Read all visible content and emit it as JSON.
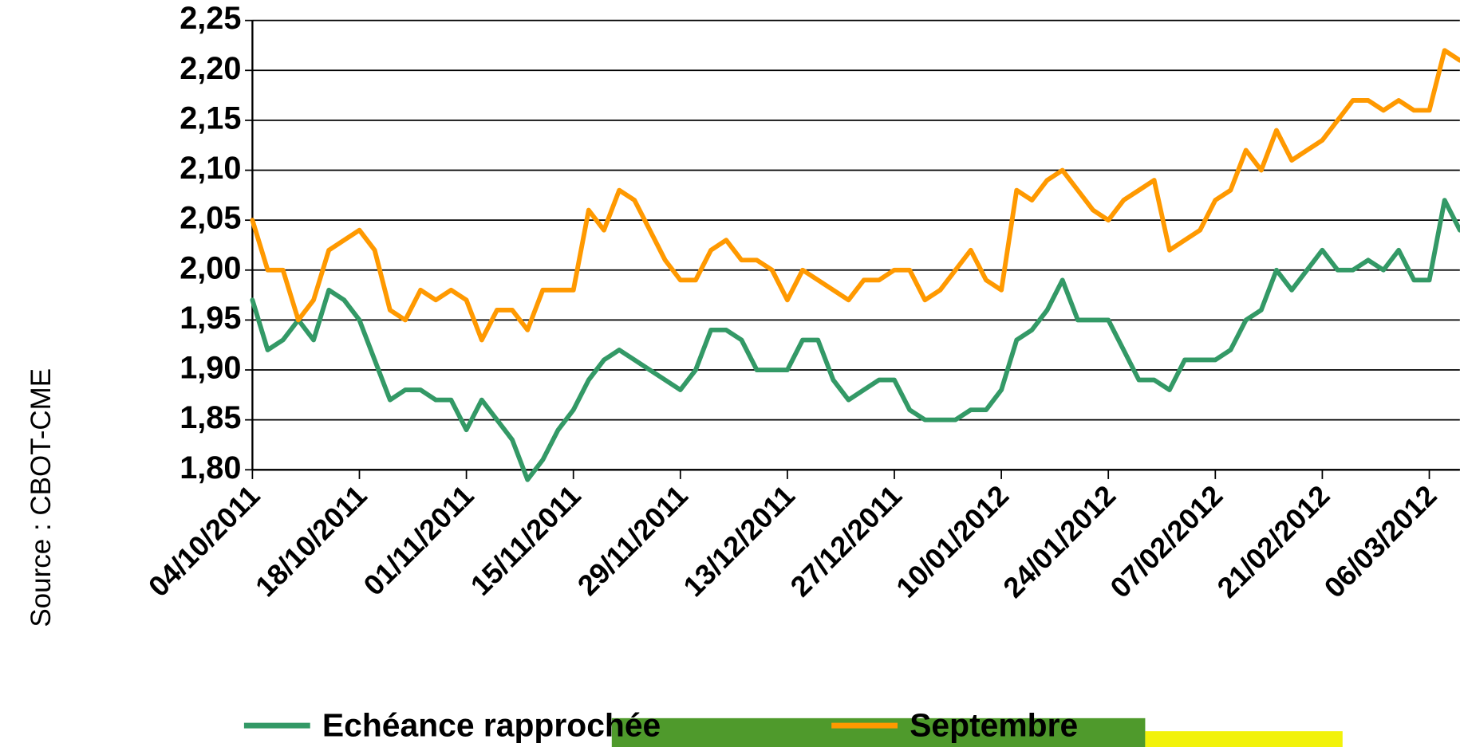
{
  "chart_data": {
    "type": "line",
    "y_label": "Source : CBOT-CME",
    "x": [
      "2011-10-04",
      "2011-10-06",
      "2011-10-08",
      "2011-10-10",
      "2011-10-12",
      "2011-10-14",
      "2011-10-16",
      "2011-10-18",
      "2011-10-20",
      "2011-10-22",
      "2011-10-24",
      "2011-10-26",
      "2011-10-28",
      "2011-10-30",
      "2011-11-01",
      "2011-11-03",
      "2011-11-05",
      "2011-11-07",
      "2011-11-09",
      "2011-11-11",
      "2011-11-13",
      "2011-11-15",
      "2011-11-17",
      "2011-11-19",
      "2011-11-21",
      "2011-11-23",
      "2011-11-25",
      "2011-11-27",
      "2011-11-29",
      "2011-12-01",
      "2011-12-03",
      "2011-12-05",
      "2011-12-07",
      "2011-12-09",
      "2011-12-11",
      "2011-12-13",
      "2011-12-15",
      "2011-12-17",
      "2011-12-19",
      "2011-12-21",
      "2011-12-23",
      "2011-12-25",
      "2011-12-27",
      "2011-12-29",
      "2011-12-31",
      "2012-01-02",
      "2012-01-04",
      "2012-01-06",
      "2012-01-08",
      "2012-01-10",
      "2012-01-12",
      "2012-01-14",
      "2012-01-16",
      "2012-01-18",
      "2012-01-20",
      "2012-01-22",
      "2012-01-24",
      "2012-01-26",
      "2012-01-28",
      "2012-01-30",
      "2012-02-01",
      "2012-02-03",
      "2012-02-05",
      "2012-02-07",
      "2012-02-09",
      "2012-02-11",
      "2012-02-13",
      "2012-02-15",
      "2012-02-17",
      "2012-02-19",
      "2012-02-21",
      "2012-02-23",
      "2012-02-25",
      "2012-02-27",
      "2012-02-29",
      "2012-03-02",
      "2012-03-04",
      "2012-03-06",
      "2012-03-08",
      "2012-03-10"
    ],
    "series": [
      {
        "name": "Echéance rapprochée",
        "color": "#339966",
        "values": [
          1.97,
          1.92,
          1.93,
          1.95,
          1.93,
          1.98,
          1.97,
          1.95,
          1.91,
          1.87,
          1.88,
          1.88,
          1.87,
          1.87,
          1.84,
          1.87,
          1.85,
          1.83,
          1.79,
          1.81,
          1.84,
          1.86,
          1.89,
          1.91,
          1.92,
          1.91,
          1.9,
          1.89,
          1.88,
          1.9,
          1.94,
          1.94,
          1.93,
          1.9,
          1.9,
          1.9,
          1.93,
          1.93,
          1.89,
          1.87,
          1.88,
          1.89,
          1.89,
          1.86,
          1.85,
          1.85,
          1.85,
          1.86,
          1.86,
          1.88,
          1.93,
          1.94,
          1.96,
          1.99,
          1.95,
          1.95,
          1.95,
          1.92,
          1.89,
          1.89,
          1.88,
          1.91,
          1.91,
          1.91,
          1.92,
          1.95,
          1.96,
          2.0,
          1.98,
          2.0,
          2.02,
          2.0,
          2.0,
          2.01,
          2.0,
          2.02,
          1.99,
          1.99,
          2.07,
          2.04
        ]
      },
      {
        "name": "Septembre",
        "color": "#ff9900",
        "values": [
          2.05,
          2.0,
          2.0,
          1.95,
          1.97,
          2.02,
          2.03,
          2.04,
          2.02,
          1.96,
          1.95,
          1.98,
          1.97,
          1.98,
          1.97,
          1.93,
          1.96,
          1.96,
          1.94,
          1.98,
          1.98,
          1.98,
          2.06,
          2.04,
          2.08,
          2.07,
          2.04,
          2.01,
          1.99,
          1.99,
          2.02,
          2.03,
          2.01,
          2.01,
          2.0,
          1.97,
          2.0,
          1.99,
          1.98,
          1.97,
          1.99,
          1.99,
          2.0,
          2.0,
          1.97,
          1.98,
          2.0,
          2.02,
          1.99,
          1.98,
          2.08,
          2.07,
          2.09,
          2.1,
          2.08,
          2.06,
          2.05,
          2.07,
          2.08,
          2.09,
          2.02,
          2.03,
          2.04,
          2.07,
          2.08,
          2.12,
          2.1,
          2.14,
          2.11,
          2.12,
          2.13,
          2.15,
          2.17,
          2.17,
          2.16,
          2.17,
          2.16,
          2.16,
          2.22,
          2.21
        ]
      }
    ],
    "xlim": [
      "2011-10-04",
      "2012-03-10"
    ],
    "xticks": [
      {
        "value": "2011-10-04",
        "label": "04/10/2011"
      },
      {
        "value": "2011-10-18",
        "label": "18/10/2011"
      },
      {
        "value": "2011-11-01",
        "label": "01/11/2011"
      },
      {
        "value": "2011-11-15",
        "label": "15/11/2011"
      },
      {
        "value": "2011-11-29",
        "label": "29/11/2011"
      },
      {
        "value": "2011-12-13",
        "label": "13/12/2011"
      },
      {
        "value": "2011-12-27",
        "label": "27/12/2011"
      },
      {
        "value": "2012-01-10",
        "label": "10/01/2012"
      },
      {
        "value": "2012-01-24",
        "label": "24/01/2012"
      },
      {
        "value": "2012-02-07",
        "label": "07/02/2012"
      },
      {
        "value": "2012-02-21",
        "label": "21/02/2012"
      },
      {
        "value": "2012-03-06",
        "label": "06/03/2012"
      }
    ],
    "ylim": [
      1.8,
      2.25
    ],
    "yticks": [
      {
        "value": 1.8,
        "label": "1,80"
      },
      {
        "value": 1.85,
        "label": "1,85"
      },
      {
        "value": 1.9,
        "label": "1,90"
      },
      {
        "value": 1.95,
        "label": "1,95"
      },
      {
        "value": 2.0,
        "label": "2,00"
      },
      {
        "value": 2.05,
        "label": "2,05"
      },
      {
        "value": 2.1,
        "label": "2,10"
      },
      {
        "value": 2.15,
        "label": "2,15"
      },
      {
        "value": 2.2,
        "label": "2,20"
      },
      {
        "value": 2.25,
        "label": "2,25"
      }
    ],
    "grid": true,
    "legend": "bottom"
  }
}
